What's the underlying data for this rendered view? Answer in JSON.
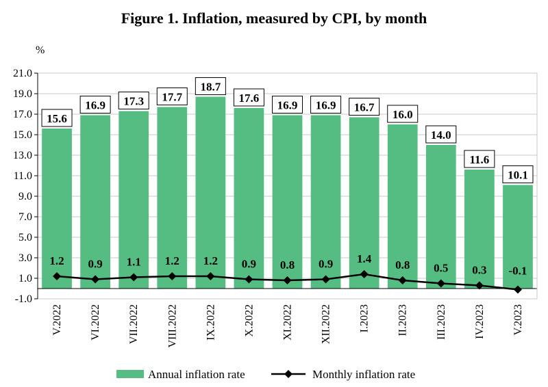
{
  "chart_data": {
    "type": "bar+line",
    "title": "Figure 1. Inflation, measured by CPI, by month",
    "ylabel": "%",
    "ylim": [
      -1.0,
      21.0
    ],
    "yticks": [
      "21.0",
      "19.0",
      "17.0",
      "15.0",
      "13.0",
      "11.0",
      "9.0",
      "7.0",
      "5.0",
      "3.0",
      "1.0",
      "-1.0"
    ],
    "categories": [
      "V.2022",
      "VI.2022",
      "VII.2022",
      "VIII.2022",
      "IX.2022",
      "X.2022",
      "XI.2022",
      "XII.2022",
      "I.2023",
      "II.2023",
      "III.2023",
      "IV.2023",
      "V.2023"
    ],
    "series": [
      {
        "name": "Annual inflation rate",
        "kind": "bar",
        "color": "#56bd82",
        "values": [
          15.6,
          16.9,
          17.3,
          17.7,
          18.7,
          17.6,
          16.9,
          16.9,
          16.7,
          16.0,
          14.0,
          11.6,
          10.1
        ],
        "labels": [
          "15.6",
          "16.9",
          "17.3",
          "17.7",
          "18.7",
          "17.6",
          "16.9",
          "16.9",
          "16.7",
          "16.0",
          "14.0",
          "11.6",
          "10.1"
        ]
      },
      {
        "name": "Monthly inflation rate",
        "kind": "line",
        "color": "#000000",
        "values": [
          1.2,
          0.9,
          1.1,
          1.2,
          1.2,
          0.9,
          0.8,
          0.9,
          1.4,
          0.8,
          0.5,
          0.3,
          -0.1
        ],
        "labels": [
          "1.2",
          "0.9",
          "1.1",
          "1.2",
          "1.2",
          "0.9",
          "0.8",
          "0.9",
          "1.4",
          "0.8",
          "0.5",
          "0.3",
          "-0.1"
        ]
      }
    ],
    "grid": true,
    "legend": "bottom"
  }
}
